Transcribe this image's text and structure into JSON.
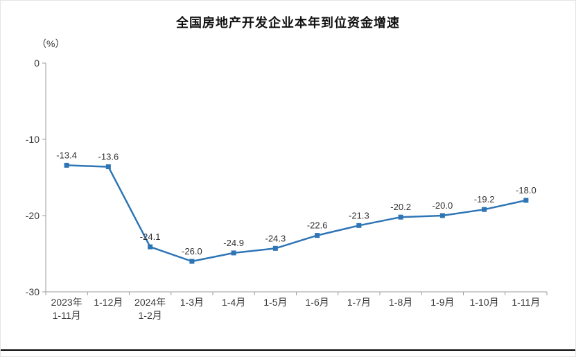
{
  "chart_data": {
    "type": "line",
    "title": "全国房地产开发企业本年到位资金增速",
    "unit_label": "（%）",
    "categories": [
      [
        "2023年",
        "1-11月"
      ],
      [
        "1-12月"
      ],
      [
        "2024年",
        "1-2月"
      ],
      [
        "1-3月"
      ],
      [
        "1-4月"
      ],
      [
        "1-5月"
      ],
      [
        "1-6月"
      ],
      [
        "1-7月"
      ],
      [
        "1-8月"
      ],
      [
        "1-9月"
      ],
      [
        "1-10月"
      ],
      [
        "1-11月"
      ]
    ],
    "values": [
      -13.4,
      -13.6,
      -24.1,
      -26.0,
      -24.9,
      -24.3,
      -22.6,
      -21.3,
      -20.2,
      -20.0,
      -19.2,
      -18.0
    ],
    "labels": [
      "-13.4",
      "-13.6",
      "-24.1",
      "-26.0",
      "-24.9",
      "-24.3",
      "-22.6",
      "-21.3",
      "-20.2",
      "-20.0",
      "-19.2",
      "-18.0"
    ],
    "ylim": [
      -30,
      0
    ],
    "yticks": [
      0,
      -10,
      -20,
      -30
    ],
    "xlabel": "",
    "ylabel": "",
    "grid": false,
    "legend": "none",
    "line_color": "#2E75B6",
    "axis_color": "#9b9b9b"
  }
}
